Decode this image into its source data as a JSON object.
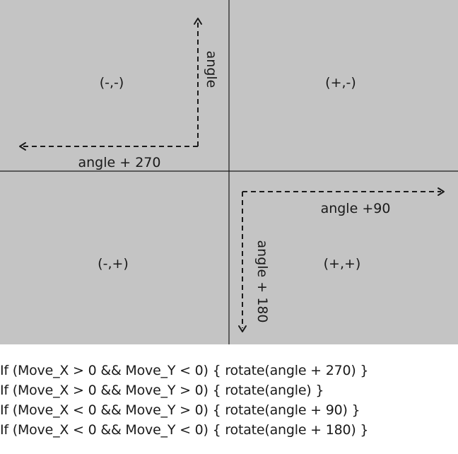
{
  "quadrants": {
    "top_left": "(-,-)",
    "top_right": "(+,-)",
    "bottom_left": "(-,+)",
    "bottom_right": "(+,+)"
  },
  "arrow_labels": {
    "up": "angle",
    "left": "angle + 270",
    "right": "angle +90",
    "down": "angle + 180"
  },
  "code_lines": [
    "If (Move_X > 0 && Move_Y < 0) { rotate(angle + 270) }",
    "If (Move_X > 0 && Move_Y > 0) { rotate(angle) }",
    "If (Move_X < 0 && Move_Y > 0) { rotate(angle + 90) }",
    "If (Move_X < 0 && Move_Y < 0) { rotate(angle + 180) }"
  ],
  "colors": {
    "quadrant_fill": "#c4c4c4",
    "divider": "#1a1a1a",
    "text": "#1a1a1a"
  }
}
